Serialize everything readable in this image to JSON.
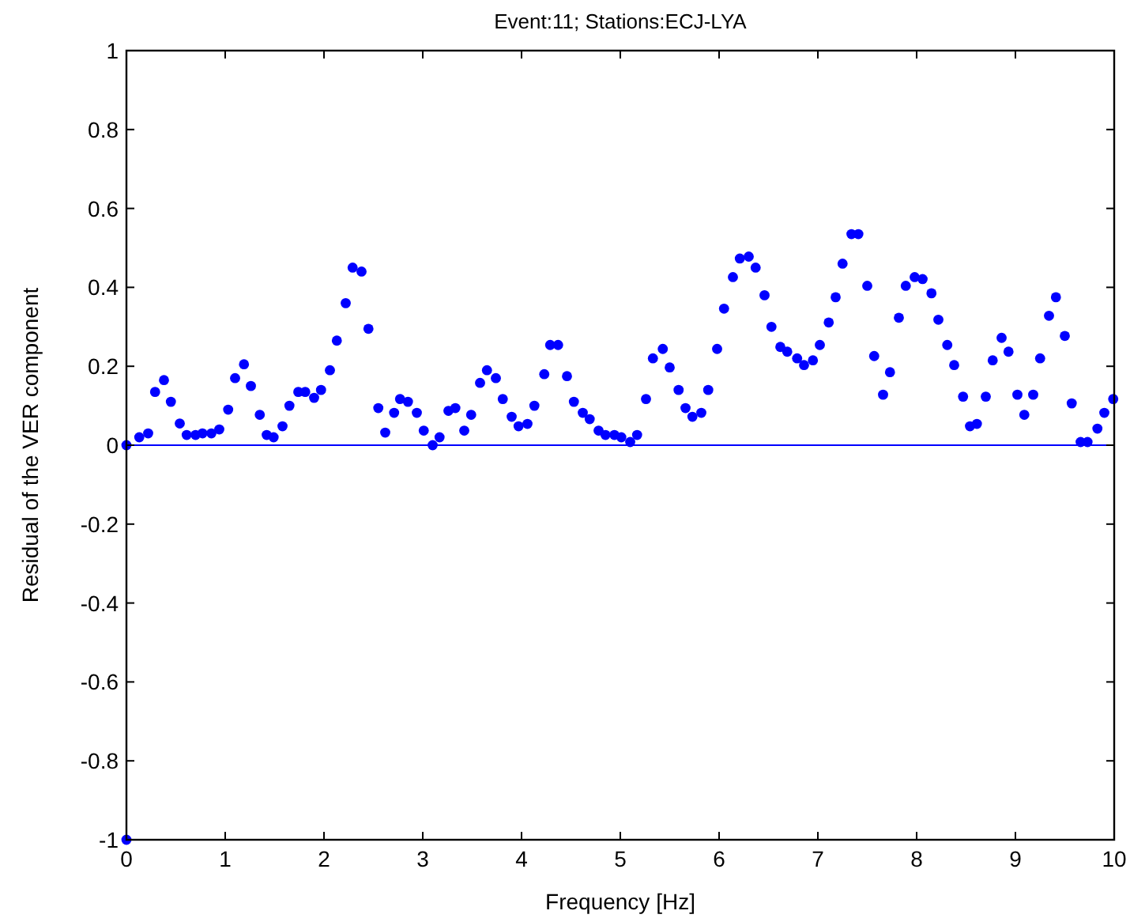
{
  "chart_data": {
    "type": "scatter",
    "title": "Event:11; Stations:ECJ-LYA",
    "xlabel": "Frequency [Hz]",
    "ylabel": "Residual of the VER component",
    "xlim": [
      0,
      10
    ],
    "xticks": [
      0,
      1,
      2,
      3,
      4,
      5,
      6,
      7,
      8,
      9,
      10
    ],
    "ylim": [
      -1,
      1
    ],
    "yticks": [
      -1,
      -0.8,
      -0.6,
      -0.4,
      -0.2,
      0,
      0.2,
      0.4,
      0.6,
      0.8,
      1
    ],
    "grid": false,
    "marker": "circle",
    "ref_lines": [
      {
        "axis": "y",
        "value": 0,
        "color": "#0000ff"
      }
    ],
    "series": [
      {
        "color": "#0000ff",
        "x": [
          0,
          0.0,
          0.13,
          0.22,
          0.29,
          0.38,
          0.45,
          0.54,
          0.61,
          0.7,
          0.77,
          0.86,
          0.94,
          1.03,
          1.1,
          1.19,
          1.26,
          1.35,
          1.42,
          1.49,
          1.58,
          1.65,
          1.74,
          1.81,
          1.9,
          1.97,
          2.06,
          2.13,
          2.22,
          2.29,
          2.38,
          2.45,
          2.55,
          2.62,
          2.71,
          2.77,
          2.85,
          2.94,
          3.01,
          3.1,
          3.17,
          3.26,
          3.33,
          3.42,
          3.49,
          3.58,
          3.65,
          3.74,
          3.81,
          3.9,
          3.97,
          4.06,
          4.13,
          4.23,
          4.29,
          4.37,
          4.46,
          4.53,
          4.62,
          4.69,
          4.78,
          4.85,
          4.94,
          5.01,
          5.1,
          5.17,
          5.26,
          5.33,
          5.43,
          5.5,
          5.59,
          5.66,
          5.73,
          5.82,
          5.89,
          5.98,
          6.05,
          6.14,
          6.21,
          6.3,
          6.37,
          6.46,
          6.53,
          6.62,
          6.69,
          6.79,
          6.86,
          6.95,
          7.02,
          7.11,
          7.18,
          7.25,
          7.34,
          7.41,
          7.5,
          7.57,
          7.66,
          7.73,
          7.82,
          7.89,
          7.98,
          8.06,
          8.15,
          8.22,
          8.31,
          8.38,
          8.47,
          8.54,
          8.61,
          8.7,
          8.77,
          8.86,
          8.93,
          9.02,
          9.09,
          9.18,
          9.25,
          9.34,
          9.41,
          9.5,
          9.57,
          9.66,
          9.73,
          9.83,
          9.9,
          9.99
        ],
        "values": [
          -1,
          0.0,
          0.02,
          0.03,
          0.135,
          0.165,
          0.11,
          0.055,
          0.026,
          0.026,
          0.03,
          0.03,
          0.04,
          0.09,
          0.17,
          0.205,
          0.15,
          0.077,
          0.026,
          0.02,
          0.048,
          0.1,
          0.135,
          0.135,
          0.12,
          0.14,
          0.19,
          0.265,
          0.36,
          0.45,
          0.44,
          0.295,
          0.094,
          0.032,
          0.082,
          0.117,
          0.11,
          0.082,
          0.037,
          0.0,
          0.02,
          0.087,
          0.094,
          0.037,
          0.077,
          0.158,
          0.19,
          0.17,
          0.117,
          0.072,
          0.048,
          0.054,
          0.1,
          0.18,
          0.254,
          0.254,
          0.175,
          0.11,
          0.082,
          0.066,
          0.037,
          0.026,
          0.026,
          0.02,
          0.008,
          0.026,
          0.117,
          0.22,
          0.244,
          0.197,
          0.14,
          0.094,
          0.072,
          0.082,
          0.14,
          0.244,
          0.346,
          0.426,
          0.473,
          0.478,
          0.45,
          0.38,
          0.3,
          0.249,
          0.237,
          0.22,
          0.203,
          0.215,
          0.254,
          0.311,
          0.375,
          0.46,
          0.535,
          0.535,
          0.404,
          0.226,
          0.128,
          0.185,
          0.323,
          0.404,
          0.426,
          0.421,
          0.385,
          0.318,
          0.254,
          0.203,
          0.123,
          0.048,
          0.054,
          0.123,
          0.215,
          0.272,
          0.237,
          0.128,
          0.077,
          0.128,
          0.22,
          0.328,
          0.375,
          0.277,
          0.106,
          0.008,
          0.008,
          0.042,
          0.082,
          0.117
        ]
      }
    ]
  }
}
